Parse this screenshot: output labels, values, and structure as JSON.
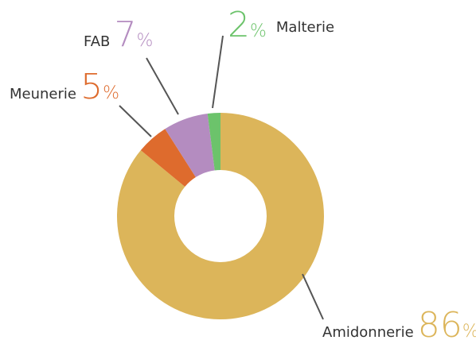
{
  "chart_data": {
    "type": "donut",
    "categories": [
      "Amidonnerie",
      "Meunerie",
      "FAB",
      "Malterie"
    ],
    "values": [
      86,
      5,
      7,
      2
    ],
    "unit": "%",
    "colors": [
      "#dcb55a",
      "#de6b2d",
      "#b48cc0",
      "#6cc36b"
    ]
  }
}
